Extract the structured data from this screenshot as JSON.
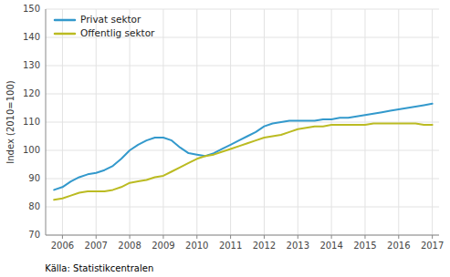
{
  "chart_data": {
    "type": "line",
    "ylabel": "Index (2010=100)",
    "annotations": [
      "Källa: Statistikcentralen"
    ],
    "x": [
      2005.75,
      2006.0,
      2006.25,
      2006.5,
      2006.75,
      2007.0,
      2007.25,
      2007.5,
      2007.75,
      2008.0,
      2008.25,
      2008.5,
      2008.75,
      2009.0,
      2009.25,
      2009.5,
      2009.75,
      2010.0,
      2010.25,
      2010.5,
      2010.75,
      2011.0,
      2011.25,
      2011.5,
      2011.75,
      2012.0,
      2012.25,
      2012.5,
      2012.75,
      2013.0,
      2013.25,
      2013.5,
      2013.75,
      2014.0,
      2014.25,
      2014.5,
      2014.75,
      2015.0,
      2015.25,
      2015.5,
      2015.75,
      2016.0,
      2016.25,
      2016.5,
      2016.75,
      2017.0
    ],
    "series": [
      {
        "name": "Privat sektor",
        "color": "#3399CC",
        "values": [
          86.0,
          87.0,
          89.0,
          90.5,
          91.5,
          92.0,
          93.0,
          94.5,
          97.0,
          100.0,
          102.0,
          103.5,
          104.5,
          104.5,
          103.5,
          101.0,
          99.0,
          98.5,
          98.0,
          99.0,
          100.5,
          102.0,
          103.5,
          105.0,
          106.5,
          108.5,
          109.5,
          110.0,
          110.5,
          110.5,
          110.5,
          110.5,
          111.0,
          111.0,
          111.5,
          111.5,
          112.0,
          112.5,
          113.0,
          113.5,
          114.0,
          114.5,
          115.0,
          115.5,
          116.0,
          116.5
        ]
      },
      {
        "name": "Offentlig sektor",
        "color": "#BBBB22",
        "values": [
          82.5,
          83.0,
          84.0,
          85.0,
          85.5,
          85.5,
          85.5,
          86.0,
          87.0,
          88.5,
          89.0,
          89.5,
          90.5,
          91.0,
          92.5,
          94.0,
          95.5,
          97.0,
          98.0,
          98.5,
          99.5,
          100.5,
          101.5,
          102.5,
          103.5,
          104.5,
          105.0,
          105.5,
          106.5,
          107.5,
          108.0,
          108.5,
          108.5,
          109.0,
          109.0,
          109.0,
          109.0,
          109.0,
          109.5,
          109.5,
          109.5,
          109.5,
          109.5,
          109.5,
          109.0,
          109.0
        ]
      }
    ],
    "xlim": [
      2005.5,
      2017.2
    ],
    "xticks": [
      2006,
      2007,
      2008,
      2009,
      2010,
      2011,
      2012,
      2013,
      2014,
      2015,
      2016,
      2017
    ],
    "ylim": [
      70,
      150
    ],
    "yticks": [
      70,
      80,
      90,
      100,
      110,
      120,
      130,
      140,
      150
    ],
    "grid": true,
    "legend": "upper left"
  }
}
